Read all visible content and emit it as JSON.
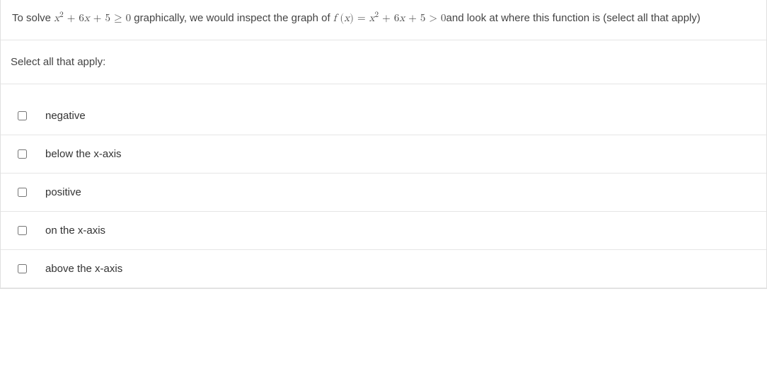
{
  "question": {
    "prefix": "To solve ",
    "expr1": {
      "raw": "x² + 6x + 5 ≥ 0",
      "var": "x",
      "exp": "2",
      "term2": " + 6",
      "var2": "x",
      "term3": " + 5 ≥ 0"
    },
    "middle": " graphically, we would inspect the graph of ",
    "func_lhs": "f (x) = ",
    "func_var1": "f",
    "func_paren_open": " (",
    "func_arg": "x",
    "func_paren_close": ") = ",
    "expr2": {
      "var": "x",
      "exp": "2",
      "term2": " + 6",
      "var2": "x",
      "term3": " + 5 > 0"
    },
    "suffix": "and look at where this function is (select all that apply)"
  },
  "instruction": "Select all that apply:",
  "options": [
    {
      "label": "negative",
      "checked": false
    },
    {
      "label": "below the x-axis",
      "checked": false
    },
    {
      "label": "positive",
      "checked": false
    },
    {
      "label": "on the x-axis",
      "checked": false
    },
    {
      "label": "above the x-axis",
      "checked": false
    }
  ],
  "colors": {
    "text": "#333333",
    "border": "#e5e5e5",
    "background": "#ffffff"
  }
}
